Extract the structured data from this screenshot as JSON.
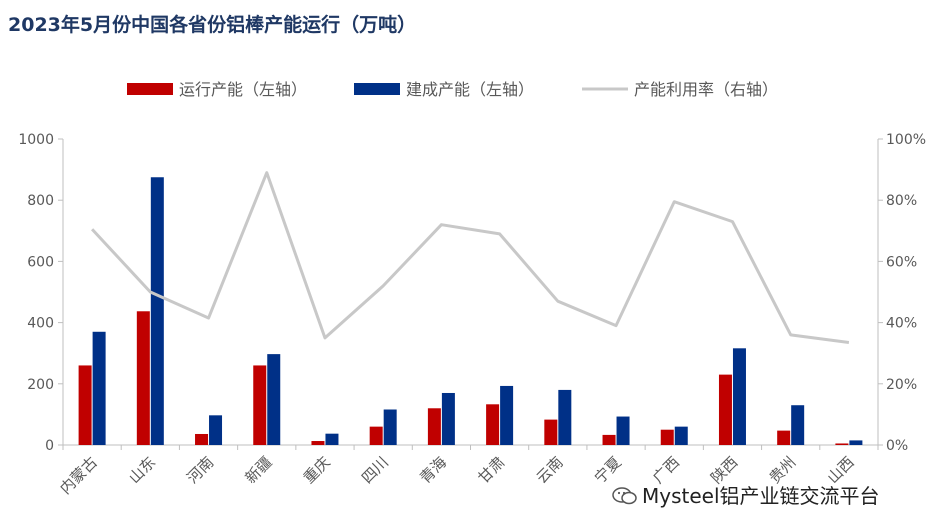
{
  "chart_data": {
    "type": "bar",
    "title": "2023年5月份中国各省份铝棒产能运行（万吨）",
    "categories": [
      "内蒙古",
      "山东",
      "河南",
      "新疆",
      "重庆",
      "四川",
      "青海",
      "甘肃",
      "云南",
      "宁夏",
      "广西",
      "陕西",
      "贵州",
      "山西"
    ],
    "series": [
      {
        "name": "运行产能（左轴）",
        "kind": "bar",
        "axis": "left",
        "color": "#c00000",
        "values": [
          260,
          437,
          36,
          260,
          13,
          60,
          120,
          133,
          83,
          33,
          50,
          230,
          47,
          5
        ]
      },
      {
        "name": "建成产能（左轴）",
        "kind": "bar",
        "axis": "left",
        "color": "#003087",
        "values": [
          370,
          875,
          97,
          297,
          37,
          116,
          170,
          193,
          180,
          93,
          60,
          316,
          130,
          15
        ]
      },
      {
        "name": "产能利用率（右轴）",
        "kind": "line",
        "axis": "right",
        "color": "#c8c8c8",
        "values": [
          0.705,
          0.5,
          0.415,
          0.89,
          0.35,
          0.52,
          0.72,
          0.69,
          0.47,
          0.39,
          0.795,
          0.73,
          0.36,
          0.335
        ]
      }
    ],
    "left_axis": {
      "min": 0,
      "max": 1000,
      "ticks": [
        0,
        200,
        400,
        600,
        800,
        1000
      ]
    },
    "right_axis": {
      "min": 0,
      "max": 1,
      "ticks": [
        "0%",
        "20%",
        "40%",
        "60%",
        "80%",
        "100%"
      ]
    },
    "legend_position": "top",
    "grid": false
  },
  "watermark": "Mysteel铝产业链交流平台"
}
